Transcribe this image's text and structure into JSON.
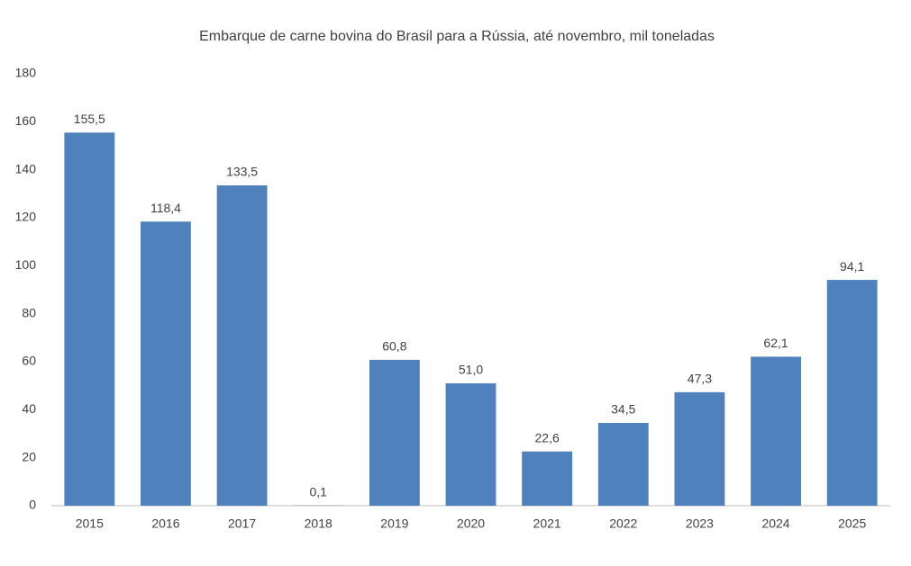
{
  "chart_data": {
    "type": "bar",
    "title": "Embarque de carne bovina do Brasil para a Rússia, até novembro, mil toneladas",
    "categories": [
      "2015",
      "2016",
      "2017",
      "2018",
      "2019",
      "2020",
      "2021",
      "2022",
      "2023",
      "2024",
      "2025"
    ],
    "values": [
      155.5,
      118.4,
      133.5,
      0.1,
      60.8,
      51.0,
      22.6,
      34.5,
      47.3,
      62.1,
      94.1
    ],
    "value_labels": [
      "155,5",
      "118,4",
      "133,5",
      "0,1",
      "60,8",
      "51,0",
      "22,6",
      "34,5",
      "47,3",
      "62,1",
      "94,1"
    ],
    "color": "#4f81bd",
    "ylim": [
      0,
      180
    ],
    "yticks": [
      0,
      20,
      40,
      60,
      80,
      100,
      120,
      140,
      160,
      180
    ],
    "grid": false
  }
}
